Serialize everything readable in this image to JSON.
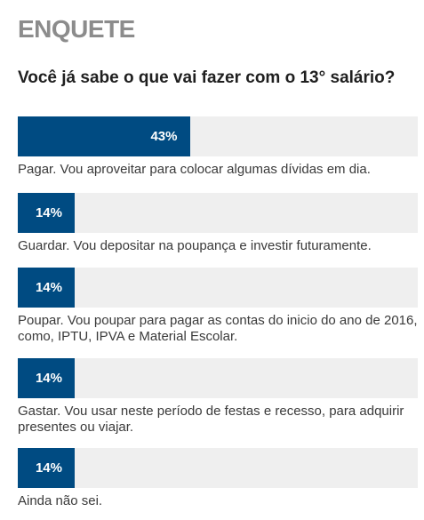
{
  "poll": {
    "header": "ENQUETE",
    "question": "Você já sabe o que vai fazer com o 13° salário?",
    "bar_color": "#004b82",
    "track_color": "#efefef",
    "options": [
      {
        "percent": 43,
        "percent_label": "43%",
        "text": "Pagar. Vou aproveitar para colocar algumas dívidas em dia."
      },
      {
        "percent": 14,
        "percent_label": "14%",
        "text": "Guardar. Vou depositar na poupança e investir futuramente."
      },
      {
        "percent": 14,
        "percent_label": "14%",
        "text": "Poupar. Vou poupar para pagar as contas do inicio do ano de 2016, como, IPTU, IPVA e Material Escolar."
      },
      {
        "percent": 14,
        "percent_label": "14%",
        "text": "Gastar. Vou usar neste período de festas e recesso, para adquirir presentes ou viajar."
      },
      {
        "percent": 14,
        "percent_label": "14%",
        "text": "Ainda não sei."
      }
    ]
  }
}
